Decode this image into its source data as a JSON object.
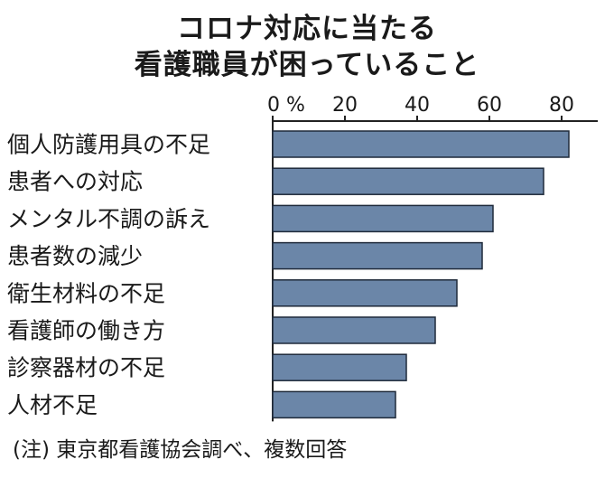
{
  "chart_data": {
    "type": "bar",
    "orientation": "horizontal",
    "title": [
      "コロナ対応に当たる",
      "看護職員が困っていること"
    ],
    "categories": [
      "個人防護用具の不足",
      "患者への対応",
      "メンタル不調の訴え",
      "患者数の減少",
      "衛生材料の不足",
      "看護師の働き方",
      "診察器材の不足",
      "人材不足"
    ],
    "values": [
      82,
      75,
      61,
      58,
      51,
      45,
      37,
      34
    ],
    "xlim": [
      0,
      90
    ],
    "xticks": [
      0,
      20,
      40,
      60,
      80
    ],
    "xtick_labels": [
      "0 %",
      "20",
      "40",
      "60",
      "80"
    ],
    "grid": false,
    "bar_color": "#6b86a8",
    "note": "(注) 東京都看護協会調べ、複数回答"
  }
}
